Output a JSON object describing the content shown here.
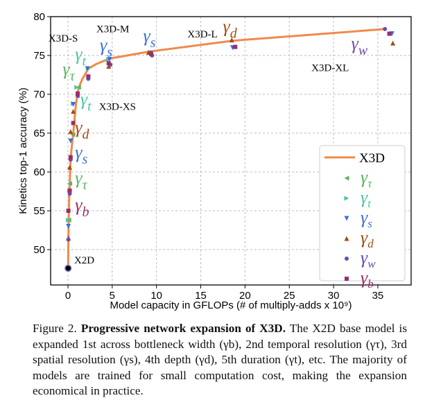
{
  "chart_data": {
    "type": "scatter",
    "xlabel": "Model capacity in GFLOPs (# of multiply-adds x 10⁹)",
    "ylabel": "Kinetics top-1 accuracy (%)",
    "xlim": [
      -2,
      37
    ],
    "ylim": [
      45.5,
      80
    ],
    "xticks": [
      0,
      5,
      10,
      15,
      20,
      25,
      30,
      35
    ],
    "yticks": [
      50,
      55,
      60,
      65,
      70,
      75,
      80
    ],
    "grid": true,
    "legend_placement": "right",
    "line": {
      "name": "X3D",
      "color": "#f08a4b",
      "x": [
        0.02,
        0.05,
        0.1,
        0.2,
        0.3,
        0.6,
        0.9,
        1.2,
        1.6,
        2.3,
        3.2,
        4.7,
        9.2,
        18.6,
        35.8
      ],
      "y": [
        47.6,
        51.5,
        55,
        58.5,
        61.8,
        65,
        68.7,
        70.8,
        71.9,
        73.3,
        73.9,
        74.6,
        75.5,
        76.9,
        78.4
      ]
    },
    "series": [
      {
        "name": "γτ",
        "sym": "τ",
        "marker": "tri-left",
        "color": "#5cb461",
        "x": [
          0.1,
          0.2,
          0.55,
          1.05,
          1.2
        ],
        "y": [
          53.8,
          58.5,
          64.8,
          69.8,
          70.9
        ]
      },
      {
        "name": "γt",
        "sym": "t",
        "marker": "tri-right",
        "color": "#4cc4a4",
        "x": [
          0.05,
          0.6,
          1.0,
          2.3,
          4.6
        ],
        "y": [
          53.8,
          68.8,
          70.9,
          73.3,
          74.5
        ]
      },
      {
        "name": "γs",
        "sym": "s",
        "marker": "tri-down",
        "color": "#3a6fd8",
        "x": [
          0.05,
          0.15,
          0.3,
          0.6,
          2.2,
          4.7,
          9.3,
          18.6,
          36.6
        ],
        "y": [
          53,
          57.3,
          64,
          68.7,
          73.3,
          74.5,
          75.3,
          76,
          77.8
        ]
      },
      {
        "name": "γd",
        "sym": "d",
        "marker": "tri-up",
        "color": "#a34c12",
        "x": [
          0.05,
          0.2,
          0.3,
          0.6,
          4.6,
          9.1,
          18.5,
          36.7
        ],
        "y": [
          51.5,
          60.6,
          65.2,
          67.8,
          73.6,
          75.4,
          77.0,
          76.6
        ]
      },
      {
        "name": "γw",
        "sym": "w",
        "marker": "circle",
        "color": "#6a4cb0",
        "x": [
          0.05,
          0.2,
          0.3,
          1.1,
          2.3,
          4.8,
          9.5,
          18.8,
          35.8
        ],
        "y": [
          51.3,
          57.2,
          61.6,
          69.8,
          72,
          73.8,
          75.0,
          76.1,
          78.4
        ]
      },
      {
        "name": "γb",
        "sym": "b",
        "marker": "square",
        "color": "#9a2d6a",
        "x": [
          0.05,
          0.2,
          0.3,
          0.6,
          1.1,
          2.3,
          4.6,
          9.4,
          18.9,
          36.3
        ],
        "y": [
          55,
          57.6,
          61.9,
          66.3,
          70.1,
          72.3,
          74.0,
          75.2,
          76.1,
          77.8
        ]
      }
    ],
    "annotations": [
      {
        "text": "X2D",
        "x": 0.7,
        "y": 48.2
      },
      {
        "text": "X3D-XS",
        "x": 3.5,
        "y": 68.0
      },
      {
        "text": "X3D-S",
        "x": -2.2,
        "y": 76.8
      },
      {
        "text": "X3D-M",
        "x": 3.2,
        "y": 78.0
      },
      {
        "text": "X3D-L",
        "x": 13.5,
        "y": 77.3
      },
      {
        "text": "X3D-XL",
        "x": 27.5,
        "y": 73.0
      }
    ],
    "gamma_labels": [
      {
        "sym": "b",
        "color": "#9a2d6a",
        "x": 0.8,
        "y": 55
      },
      {
        "sym": "τ",
        "color": "#5cb461",
        "x": 0.8,
        "y": 58.5
      },
      {
        "sym": "s",
        "color": "#3a6fd8",
        "x": 0.8,
        "y": 61.8
      },
      {
        "sym": "d",
        "color": "#a34c12",
        "x": 0.8,
        "y": 65
      },
      {
        "sym": "t",
        "color": "#4cc4a4",
        "x": 1.4,
        "y": 68.6
      },
      {
        "sym": "τ",
        "color": "#5cb461",
        "x": -0.6,
        "y": 72.5
      },
      {
        "sym": "t",
        "color": "#4cc4a4",
        "x": 0.8,
        "y": 74.4
      },
      {
        "sym": "s",
        "color": "#3a6fd8",
        "x": 3.6,
        "y": 75.6
      },
      {
        "sym": "s",
        "color": "#3a6fd8",
        "x": 8.5,
        "y": 76.8
      },
      {
        "sym": "d",
        "color": "#a34c12",
        "x": 17.5,
        "y": 78
      },
      {
        "sym": "w",
        "color": "#6a4cb0",
        "x": 32,
        "y": 75.8
      }
    ],
    "legend_title": "X3D"
  },
  "caption": {
    "label": "Figure 2.",
    "title": "Progressive network expansion of X3D.",
    "line1": " The X2D base",
    "body": "model is expanded 1st across bottleneck width (γb), 2nd temporal resolution (γτ), 3rd spatial resolution (γs), 4th depth (γd), 5th duration (γt), etc. The majority of models are trained for small computation cost, making the expansion economical in practice."
  }
}
